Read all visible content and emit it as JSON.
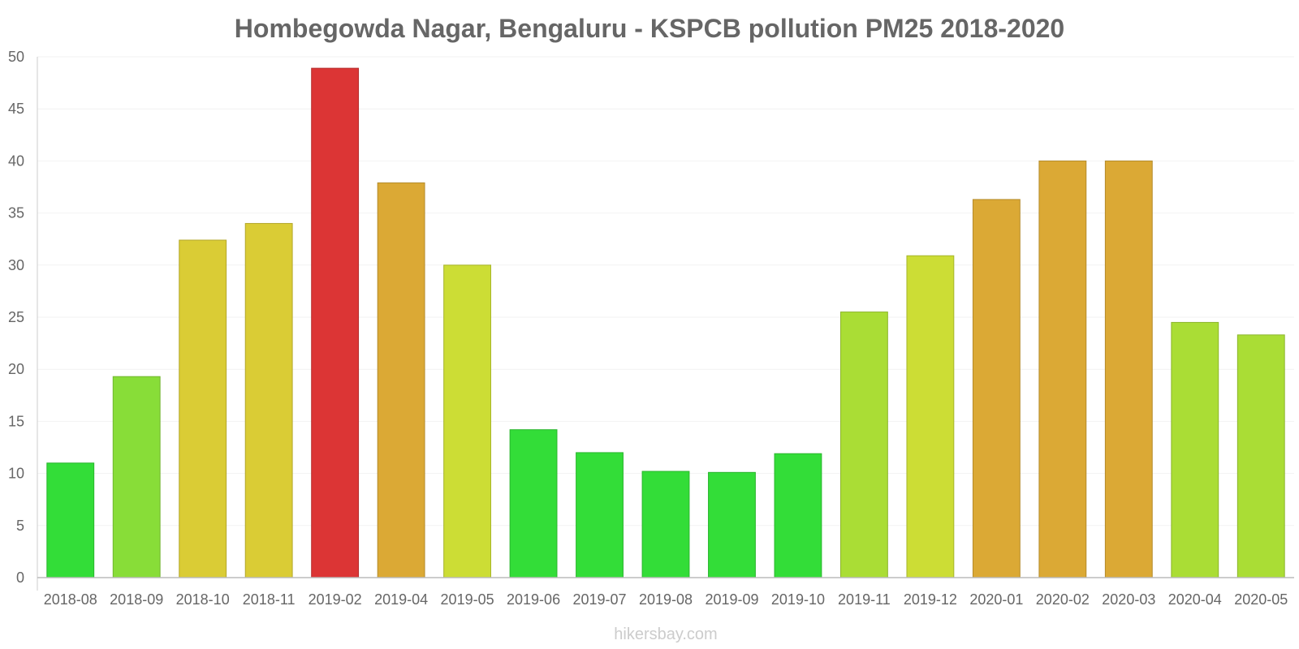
{
  "chart_data": {
    "type": "bar",
    "title": "Hombegowda Nagar, Bengaluru - KSPCB pollution PM25 2018-2020",
    "xlabel": "",
    "ylabel": "",
    "ylim": [
      0,
      50
    ],
    "yticks": [
      0,
      5,
      10,
      15,
      20,
      25,
      30,
      35,
      40,
      45,
      50
    ],
    "grid": true,
    "categories": [
      "2018-08",
      "2018-09",
      "2018-10",
      "2018-11",
      "2019-02",
      "2019-04",
      "2019-05",
      "2019-06",
      "2019-07",
      "2019-08",
      "2019-09",
      "2019-10",
      "2019-11",
      "2019-12",
      "2020-01",
      "2020-02",
      "2020-03",
      "2020-04",
      "2020-05"
    ],
    "values": [
      11,
      19.3,
      32.4,
      34,
      48.9,
      37.9,
      30,
      14.2,
      12,
      10.2,
      10.1,
      11.9,
      25.5,
      30.9,
      36.3,
      40,
      40,
      24.5,
      23.3
    ],
    "colors": [
      "#33dd38",
      "#88dd38",
      "#dacc35",
      "#dacc35",
      "#dc3535",
      "#dba935",
      "#ccdd35",
      "#33dd38",
      "#33dd38",
      "#33dd38",
      "#33dd38",
      "#33dd38",
      "#aadd35",
      "#ccdd35",
      "#dba935",
      "#dba935",
      "#dba935",
      "#aadd35",
      "#aadd35"
    ],
    "credit": "hikersbay.com"
  }
}
